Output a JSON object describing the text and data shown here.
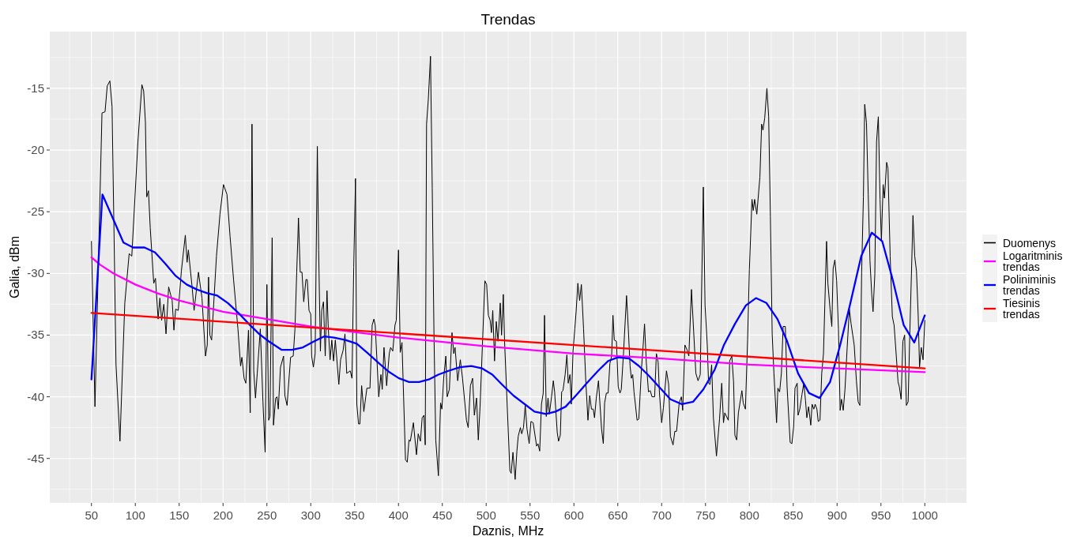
{
  "chart_data": {
    "type": "line",
    "title": "Trendas",
    "xlabel": "Daznis, MHz",
    "ylabel": "Galia, dBm",
    "xlim": [
      2.5,
      1047.5
    ],
    "ylim": [
      -48.6,
      -10.4
    ],
    "xticks": [
      50,
      100,
      150,
      200,
      250,
      300,
      350,
      400,
      450,
      500,
      550,
      600,
      650,
      700,
      750,
      800,
      850,
      900,
      950,
      1000
    ],
    "yticks": [
      -45,
      -40,
      -35,
      -30,
      -25,
      -20,
      -15
    ],
    "grid": true,
    "legend": "right",
    "series": [
      {
        "name": "Duomenys",
        "color": "#000000",
        "x": [
          50,
          54,
          62,
          65.5,
          68,
          71,
          73.5,
          78,
          82.5,
          88,
          93,
          96,
          103,
          107.5,
          109.5,
          111.5,
          113,
          115,
          117,
          121,
          123,
          126,
          128,
          130,
          132.5,
          135,
          138,
          142,
          144,
          146,
          149,
          152.5,
          157,
          159,
          160.5,
          165,
          167,
          172,
          176,
          180,
          182,
          183.5,
          185,
          187,
          192.5,
          196.5,
          200.5,
          204.5,
          208,
          212,
          217,
          220,
          221.5,
          224,
          226,
          229,
          231,
          233,
          235,
          237,
          239,
          242.5,
          245.5,
          248,
          250,
          252,
          253.5,
          256,
          257.5,
          260,
          261.5,
          263,
          265.5,
          269,
          270.5,
          273,
          277,
          280,
          282,
          284,
          286,
          288,
          290,
          292,
          294.5,
          296,
          298,
          300,
          301,
          303,
          305,
          307.5,
          309,
          311,
          312.5,
          314.5,
          316.5,
          318.5,
          320,
          322,
          324,
          326,
          328,
          332,
          334,
          337,
          339,
          341,
          345,
          347,
          349,
          351,
          352.5,
          354.5,
          356,
          358,
          360.5,
          364,
          367.5,
          370,
          372,
          373.5,
          377.5,
          380,
          381.5,
          383.5,
          386.5,
          389.5,
          391,
          393.5,
          396,
          397.5,
          400,
          402,
          404,
          405.5,
          408,
          410,
          412,
          413.5,
          417,
          420.5,
          422.5,
          425,
          427,
          429,
          430.5,
          432,
          434,
          436.5,
          438.5,
          440.5,
          442.5,
          445.5,
          448,
          449.5,
          451.5,
          454,
          455.5,
          458,
          461,
          463,
          464.5,
          467.5,
          470.5,
          473,
          477.5,
          479.5,
          482,
          484.5,
          486.5,
          489,
          491,
          493,
          498.5,
          500.5,
          502.5,
          504.5,
          506,
          507.5,
          509.5,
          511.5,
          513.5,
          516,
          517.5,
          519.5,
          521,
          524,
          527,
          528.5,
          530.5,
          533,
          535,
          536.5,
          539,
          540.5,
          542.5,
          544.5,
          546.5,
          549,
          551,
          553.5,
          557.5,
          559,
          561,
          563,
          565,
          566.5,
          568.5,
          570.5,
          572,
          574.5,
          576.5,
          578,
          581,
          582.5,
          584.5,
          586,
          587.5,
          590,
          592,
          593.5,
          595.5,
          597,
          599,
          601,
          602.5,
          604.5,
          606.5,
          608.5,
          611,
          613.5,
          616,
          618,
          620,
          622,
          623.5,
          625.5,
          628,
          629.5,
          631.5,
          633.5,
          635,
          637,
          639,
          641,
          643,
          644.5,
          646,
          648.5,
          650.5,
          652.5,
          654,
          656.5,
          660,
          662,
          664,
          665.5,
          667,
          668.5,
          672,
          674,
          677,
          678.5,
          680.5,
          682.5,
          685,
          687,
          689,
          692,
          694,
          696,
          697.5,
          700,
          702,
          705.5,
          708,
          710,
          713,
          715,
          717,
          720,
          722.5,
          724,
          726.5,
          729,
          731,
          734,
          736.5,
          739,
          741.5,
          744,
          747.5,
          749.5,
          752,
          753.5,
          755,
          757,
          759,
          762.5,
          766,
          768.5,
          770.5,
          772,
          776,
          777.5,
          780,
          782,
          783.5,
          785.5,
          787.5,
          791.5,
          793,
          795.5,
          798,
          800,
          803,
          804.5,
          806,
          808.5,
          812,
          814,
          815.5,
          817.5,
          820,
          822,
          824,
          826,
          828,
          831,
          832.5,
          834.5,
          836.5,
          838.5,
          841,
          843,
          846.5,
          848.5,
          850.5,
          852,
          854.5,
          855.5,
          857.5,
          860,
          862,
          864,
          865.5,
          867.5,
          870,
          871.5,
          873.5,
          875,
          877,
          878.5,
          880.5,
          882.5,
          884.5,
          888,
          889.5,
          892,
          894,
          895.5,
          897.5,
          899.5,
          901.5,
          903.5,
          905,
          907,
          909,
          911.5,
          914,
          916,
          919.5,
          922,
          924,
          926,
          928,
          930,
          931.5,
          933.5,
          935.5,
          937.5,
          939.5,
          941,
          943,
          945,
          947,
          949,
          950.5,
          952.5,
          954,
          956.5,
          958,
          960.5,
          963,
          965,
          967.5,
          969.5,
          971,
          973,
          975,
          977,
          979,
          981,
          983,
          985,
          986.5,
          988.5,
          990.5,
          992.5,
          994,
          996,
          998,
          1000
        ],
        "values": [
          -27.4,
          -40.8,
          -17.0,
          -16.9,
          -14.8,
          -14.4,
          -16.5,
          -37.4,
          -43.6,
          -32.4,
          -28.4,
          -28.6,
          -19.3,
          -14.7,
          -15.2,
          -17.7,
          -23.8,
          -23.3,
          -26.3,
          -30.8,
          -30.4,
          -33.7,
          -32.0,
          -33.8,
          -32.5,
          -34.9,
          -31.1,
          -32.2,
          -34.6,
          -32.9,
          -33.0,
          -29.8,
          -26.9,
          -29.1,
          -28.1,
          -31.3,
          -33.0,
          -29.9,
          -32.0,
          -36.7,
          -35.8,
          -30.3,
          -35.0,
          -35.4,
          -28.6,
          -25.2,
          -22.8,
          -23.6,
          -27.0,
          -30.5,
          -34.5,
          -37.5,
          -36.8,
          -38.5,
          -38.9,
          -34.6,
          -41.3,
          -17.9,
          -37.9,
          -40.1,
          -38.1,
          -34.5,
          -40.4,
          -44.5,
          -30.9,
          -41.9,
          -41.6,
          -27.1,
          -42.3,
          -40.1,
          -40.0,
          -41.0,
          -37.6,
          -36.7,
          -39.9,
          -40.7,
          -36.8,
          -36.7,
          -34.5,
          -29.9,
          -25.5,
          -29.9,
          -29.9,
          -32.3,
          -30.5,
          -30.5,
          -33.0,
          -33.3,
          -36.7,
          -37.6,
          -36.5,
          -19.7,
          -28.1,
          -36.3,
          -33.0,
          -32.3,
          -36.7,
          -31.4,
          -34.5,
          -37.0,
          -35.4,
          -37.1,
          -35.4,
          -39.0,
          -37.0,
          -36.2,
          -34.9,
          -38.1,
          -37.9,
          -38.5,
          -29.5,
          -22.3,
          -40.6,
          -42.2,
          -42.2,
          -39.1,
          -41.2,
          -39.3,
          -39.3,
          -34.2,
          -33.7,
          -34.2,
          -40.0,
          -38.2,
          -39.4,
          -36.0,
          -39.1,
          -36.5,
          -36.0,
          -36.3,
          -34.2,
          -33.8,
          -28.1,
          -36.4,
          -35.6,
          -39.2,
          -45.1,
          -45.3,
          -43.5,
          -43.6,
          -42.1,
          -44.7,
          -43.0,
          -43.6,
          -41.7,
          -41.5,
          -43.9,
          -17.9,
          -15.9,
          -12.4,
          -23.1,
          -35.1,
          -43.5,
          -46.4,
          -40.5,
          -41.0,
          -38.5,
          -36.7,
          -40.0,
          -39.4,
          -34.8,
          -36.5,
          -36.0,
          -38.7,
          -37.0,
          -38.5,
          -41.9,
          -42.5,
          -39.1,
          -38.5,
          -41.5,
          -40.1,
          -43.5,
          -40.8,
          -30.6,
          -30.9,
          -33.4,
          -33.8,
          -34.8,
          -33.0,
          -37.1,
          -33.9,
          -35.5,
          -32.4,
          -35.0,
          -31.7,
          -35.6,
          -40.8,
          -46.0,
          -46.2,
          -44.5,
          -46.7,
          -44.4,
          -43.2,
          -42.5,
          -43.0,
          -42.5,
          -40.7,
          -42.6,
          -43.8,
          -42.0,
          -42.1,
          -44.0,
          -43.8,
          -44.4,
          -40.6,
          -39.7,
          -33.4,
          -41.6,
          -40.1,
          -41.4,
          -40.0,
          -38.7,
          -39.6,
          -42.9,
          -43.6,
          -43.1,
          -39.6,
          -39.5,
          -38.2,
          -36.6,
          -38.9,
          -38.2,
          -40.6,
          -36.3,
          -34.5,
          -33.1,
          -30.8,
          -32.2,
          -30.9,
          -34.5,
          -38.7,
          -41.9,
          -39.9,
          -41.0,
          -41.0,
          -41.7,
          -40.1,
          -38.7,
          -40.4,
          -42.6,
          -43.8,
          -40.5,
          -39.7,
          -39.7,
          -37.3,
          -36.7,
          -33.4,
          -35.4,
          -35.5,
          -39.2,
          -39.7,
          -39.4,
          -36.5,
          -31.8,
          -34.5,
          -37.5,
          -38.5,
          -38.2,
          -39.6,
          -41.9,
          -41.8,
          -37.7,
          -36.3,
          -34.1,
          -37.2,
          -39.6,
          -39.5,
          -40.0,
          -40.0,
          -36.5,
          -37.2,
          -39.7,
          -42.1,
          -40.9,
          -37.9,
          -39.0,
          -43.2,
          -43.9,
          -42.8,
          -42.8,
          -40.5,
          -40.0,
          -41.1,
          -35.8,
          -36.2,
          -36.7,
          -31.3,
          -34.7,
          -38.1,
          -38.7,
          -38.2,
          -23.0,
          -32.6,
          -35.8,
          -38.9,
          -39.0,
          -37.4,
          -41.7,
          -44.8,
          -41.8,
          -38.9,
          -42.1,
          -41.3,
          -41.9,
          -37.1,
          -36.7,
          -38.8,
          -43.1,
          -43.5,
          -41.3,
          -39.5,
          -40.5,
          -41.0,
          -35.4,
          -29.7,
          -24.0,
          -24.9,
          -24.0,
          -25.2,
          -22.2,
          -17.9,
          -18.4,
          -17.4,
          -15.0,
          -17.3,
          -25.4,
          -34.9,
          -38.1,
          -42.1,
          -39.3,
          -39.6,
          -38.1,
          -34.3,
          -34.3,
          -39.2,
          -43.7,
          -43.8,
          -42.4,
          -39.3,
          -38.9,
          -41.5,
          -41.0,
          -39.8,
          -38.9,
          -40.3,
          -41.7,
          -40.8,
          -42.3,
          -40.6,
          -41.0,
          -40.6,
          -41.0,
          -42.0,
          -41.9,
          -38.1,
          -36.5,
          -27.4,
          -30.8,
          -32.9,
          -34.3,
          -29.6,
          -28.9,
          -30.6,
          -34.5,
          -41.1,
          -40.2,
          -41.1,
          -39.4,
          -36.0,
          -32.9,
          -34.1,
          -35.8,
          -38.7,
          -40.4,
          -40.7,
          -29.9,
          -23.8,
          -16.3,
          -17.8,
          -23.6,
          -29.0,
          -31.7,
          -33.1,
          -30.1,
          -19.3,
          -17.3,
          -24.0,
          -27.4,
          -22.8,
          -23.9,
          -21.0,
          -21.5,
          -28.6,
          -33.5,
          -34.2,
          -36.7,
          -38.8,
          -39.2,
          -40.2,
          -35.5,
          -35.0,
          -40.7,
          -40.4,
          -34.6,
          -29.4,
          -25.3,
          -28.6,
          -29.8,
          -33.5,
          -37.6,
          -36.0,
          -37.0,
          -33.8
        ]
      },
      {
        "name": "Logaritminis trendas",
        "color": "#ff00ff",
        "x": [
          50,
          60,
          75,
          100,
          125,
          150,
          200,
          250,
          300,
          400,
          500,
          600,
          700,
          800,
          900,
          1000
        ],
        "values": [
          -28.7,
          -29.3,
          -30.0,
          -30.9,
          -31.6,
          -32.2,
          -33.1,
          -33.7,
          -34.3,
          -35.2,
          -35.9,
          -36.5,
          -36.9,
          -37.4,
          -37.7,
          -38.0
        ]
      },
      {
        "name": "Poliniminis trendas",
        "color": "#0000ff",
        "x": [
          50,
          62.5,
          86.5,
          97.5,
          110.5,
          122.5,
          134,
          146,
          158.5,
          170,
          182,
          193.5,
          205.5,
          217.5,
          229.5,
          241,
          252,
          267,
          278.5,
          291,
          304,
          315.5,
          326.5,
          339.5,
          352.5,
          365.5,
          378,
          389.5,
          400.5,
          412,
          423.5,
          434.5,
          445.5,
          457,
          470,
          483,
          495.5,
          507,
          518,
          531,
          544,
          555,
          568,
          579,
          590.5,
          603.5,
          614.5,
          627.5,
          639,
          650,
          663,
          674,
          685.5,
          698.5,
          710,
          723,
          736,
          747.5,
          760.5,
          771,
          783.5,
          796,
          807.5,
          819.5,
          832,
          842.5,
          855.5,
          868,
          880,
          892,
          903.5,
          914.5,
          927.5,
          939.5,
          951.5,
          963,
          976,
          988,
          1000
        ],
        "values": [
          -38.6,
          -23.6,
          -27.5,
          -27.9,
          -27.9,
          -28.3,
          -29.2,
          -30.2,
          -30.9,
          -31.3,
          -31.6,
          -31.8,
          -32.4,
          -33.2,
          -34.1,
          -34.9,
          -35.5,
          -36.2,
          -36.2,
          -36.0,
          -35.5,
          -35.1,
          -35.2,
          -35.4,
          -35.7,
          -36.5,
          -37.3,
          -38.0,
          -38.5,
          -38.8,
          -38.8,
          -38.6,
          -38.2,
          -37.9,
          -37.6,
          -37.5,
          -37.7,
          -38.2,
          -39.0,
          -39.9,
          -40.6,
          -41.2,
          -41.4,
          -41.2,
          -40.8,
          -39.8,
          -38.9,
          -37.9,
          -37.1,
          -36.8,
          -36.9,
          -37.5,
          -38.3,
          -39.3,
          -40.2,
          -40.6,
          -40.4,
          -39.4,
          -37.8,
          -35.8,
          -34.1,
          -32.6,
          -32.0,
          -32.4,
          -33.7,
          -35.4,
          -38.1,
          -39.7,
          -40.1,
          -38.8,
          -35.8,
          -32.6,
          -28.6,
          -26.7,
          -27.4,
          -30.4,
          -34.2,
          -35.6,
          -33.4
        ]
      },
      {
        "name": "Tiesinis trendas",
        "color": "#ff0000",
        "x": [
          50,
          1000
        ],
        "values": [
          -33.2,
          -37.7
        ]
      }
    ]
  }
}
